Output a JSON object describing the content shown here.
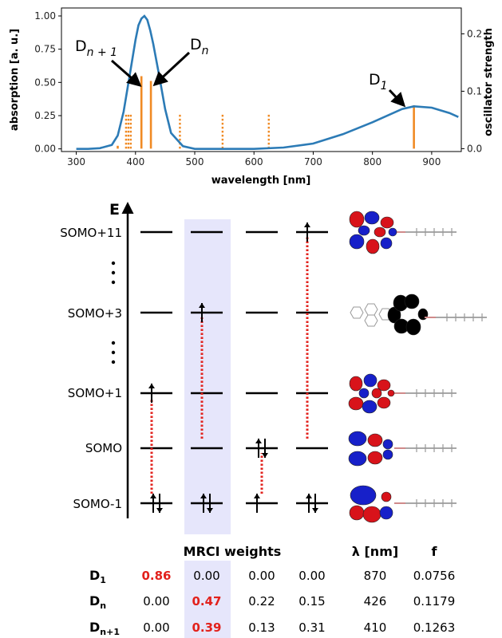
{
  "chart_data": {
    "type": "line",
    "xlabel": "wavelength [nm]",
    "ylabel": "absorption [a. u.]",
    "y2label": "oscillator strength",
    "xlim": [
      275,
      950
    ],
    "ylim": [
      -0.02,
      1.06
    ],
    "y2lim": [
      -0.005,
      0.245
    ],
    "x_ticks": [
      "300",
      "400",
      "500",
      "600",
      "700",
      "800",
      "900"
    ],
    "y_ticks": [
      "0.00",
      "0.25",
      "0.50",
      "0.75",
      "1.00"
    ],
    "y2_ticks": [
      "0.0",
      "0.1",
      "0.2"
    ],
    "grid": false,
    "series": [
      {
        "x": [
          300,
          320,
          340,
          360,
          370,
          380,
          390,
          400,
          405,
          410,
          415,
          420,
          425,
          430,
          440,
          450,
          460,
          480,
          500,
          550,
          600,
          650,
          700,
          750,
          800,
          850,
          870,
          900,
          930,
          945
        ],
        "values": [
          0.0,
          0.0,
          0.005,
          0.03,
          0.1,
          0.28,
          0.55,
          0.82,
          0.93,
          0.98,
          1.0,
          0.97,
          0.89,
          0.79,
          0.55,
          0.3,
          0.12,
          0.02,
          0.0,
          0.0,
          0.0,
          0.01,
          0.04,
          0.11,
          0.2,
          0.3,
          0.32,
          0.31,
          0.27,
          0.24
        ]
      }
    ],
    "sticks_solid": [
      {
        "x": 370,
        "f": 0.005
      },
      {
        "x": 410,
        "f": 0.1263
      },
      {
        "x": 426,
        "f": 0.1179
      },
      {
        "x": 870,
        "f": 0.0756
      }
    ],
    "sticks_dotted": [
      {
        "x": 384,
        "f": 0.062
      },
      {
        "x": 388,
        "f": 0.062
      },
      {
        "x": 392,
        "f": 0.062
      },
      {
        "x": 475,
        "f": 0.062
      },
      {
        "x": 547,
        "f": 0.062
      },
      {
        "x": 625,
        "f": 0.062
      }
    ],
    "annotations": [
      {
        "main": "D",
        "sub": "n + 1",
        "target_x": 410
      },
      {
        "main": "D",
        "sub": "n",
        "target_x": 428
      },
      {
        "main": "D",
        "sub": "1",
        "target_x": 862
      }
    ],
    "colors": {
      "curve": "#2c7bb6",
      "sticks": "#f08a24"
    }
  },
  "diagram": {
    "energy_label": "E",
    "levels": [
      "SOMO+11",
      "SOMO+3",
      "SOMO+1",
      "SOMO",
      "SOMO-1"
    ],
    "dots": ":",
    "transition_color": "#e2211c",
    "highlight_color": "#e6e6fb",
    "orbital_colors": {
      "positive": "#d8131a",
      "negative": "#1720c9"
    }
  },
  "table": {
    "header": "MRCI weights",
    "lambda_header": "λ [nm]",
    "f_header": "f",
    "rows": [
      {
        "main": "D",
        "sub": "1",
        "weights": [
          "0.86",
          "0.00",
          "0.00",
          "0.00"
        ],
        "highlight": 0,
        "lambda": "870",
        "f": "0.0756"
      },
      {
        "main": "D",
        "sub": "n",
        "weights": [
          "0.00",
          "0.47",
          "0.22",
          "0.15"
        ],
        "highlight": 1,
        "lambda": "426",
        "f": "0.1179"
      },
      {
        "main": "D",
        "sub": "n+1",
        "weights": [
          "0.00",
          "0.39",
          "0.13",
          "0.31"
        ],
        "highlight": 1,
        "lambda": "410",
        "f": "0.1263"
      }
    ]
  }
}
